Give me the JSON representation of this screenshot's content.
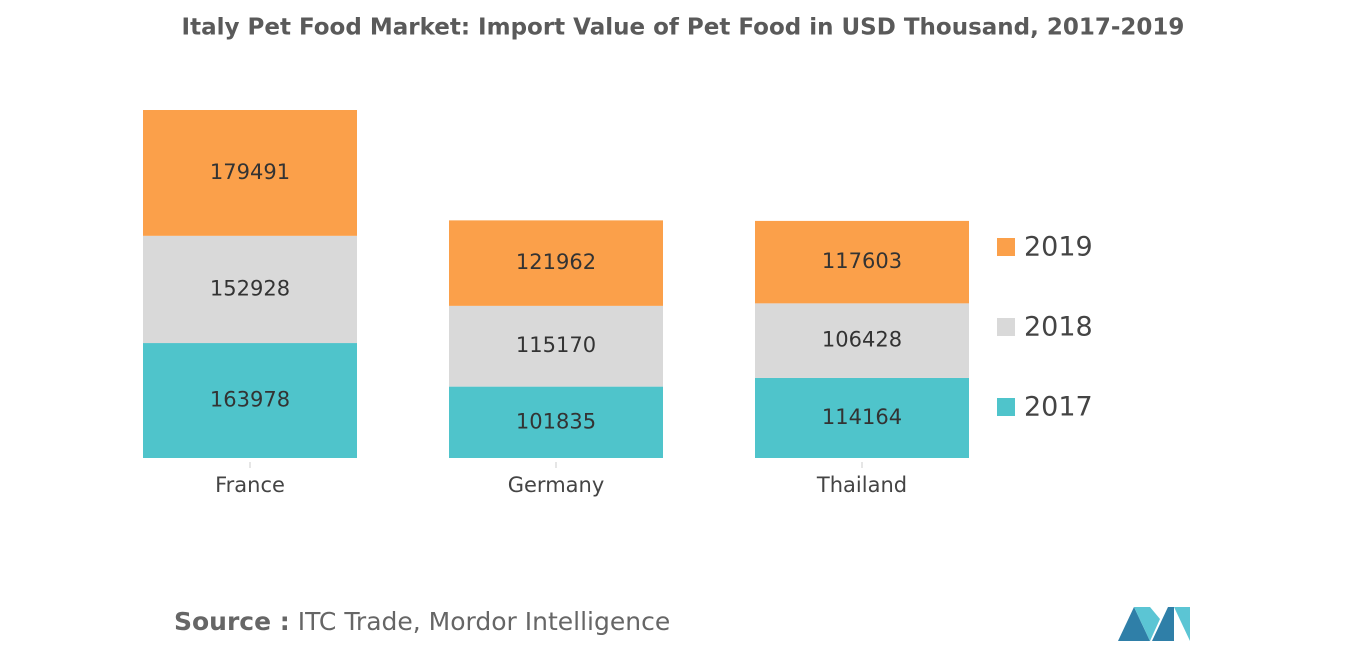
{
  "chart_data": {
    "type": "stacked_bar",
    "title": "Italy Pet Food Market: Import Value of Pet Food in USD Thousand, 2017-2019",
    "categories": [
      "France",
      "Germany",
      "Thailand"
    ],
    "series": [
      {
        "name": "2017",
        "color": "#4fc4cb",
        "values": [
          163978,
          101835,
          114164
        ]
      },
      {
        "name": "2018",
        "color": "#d9d9d9",
        "values": [
          152928,
          115170,
          106428
        ]
      },
      {
        "name": "2019",
        "color": "#fba04a",
        "values": [
          179491,
          121962,
          117603
        ]
      }
    ],
    "source_label": "Source :",
    "source": "ITC Trade, Mordor Intelligence"
  }
}
